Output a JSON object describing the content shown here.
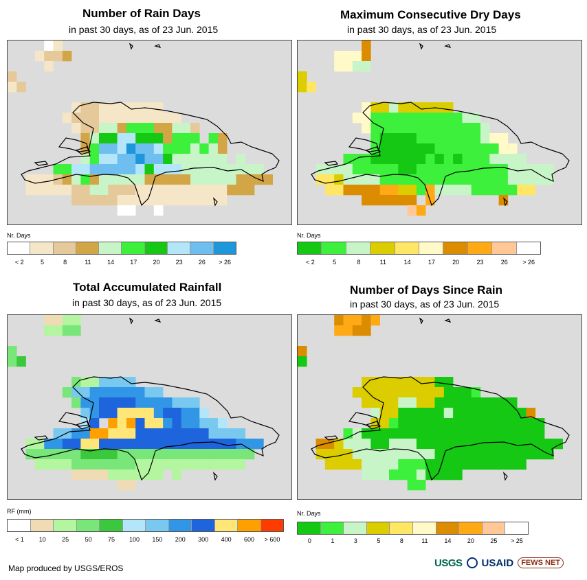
{
  "panels": [
    {
      "id": "rain-days",
      "title": "Number of Rain Days",
      "subtitle": "in past 30 days, as of 23 Jun. 2015",
      "legend_title": "Nr. Days",
      "legend_colors": [
        "#ffffff",
        "#f5e6c8",
        "#e6c99a",
        "#d2a646",
        "#c8f5c8",
        "#3cf03c",
        "#14c814",
        "#b4e6fa",
        "#6ebef0",
        "#1e96dc"
      ],
      "legend_labels": [
        "< 2",
        "5",
        "8",
        "11",
        "14",
        "17",
        "20",
        "23",
        "26",
        "> 26"
      ],
      "grid": [
        "....01.........................",
        "...1223........................",
        "....1..........................",
        "2..............................",
        "12.............................",
        "...............................",
        ".......1221111111..............",
        "......1222111111111............",
        ".......12244355533442..........",
        "........3466776663555.53.......",
        "........3588798875554543.......",
        "........4577889886444444.4.....",
        ".....55778888876777444444444...",
        "..111234534444433333444443333..",
        "..1111122442221111111111333....",
        ".......22222111111111111.......",
        "............00..0..............",
        "................................"
      ]
    },
    {
      "id": "dry-days",
      "title": "Maximum Consecutive Dry Days",
      "subtitle": "in past 30 days, as of 23 Jun. 2015",
      "legend_title": "Nr. Days",
      "legend_colors": [
        "#14c814",
        "#3cf03c",
        "#c8f5c8",
        "#dccd00",
        "#ffe664",
        "#fffac8",
        "#dc8c00",
        "#ffaa14",
        "#ffc896",
        "#ffffff"
      ],
      "legend_labels": [
        "< 2",
        "5",
        "8",
        "11",
        "14",
        "17",
        "20",
        "23",
        "26",
        "> 26"
      ],
      "grid": [
        ".......6.......................",
        "....5556.......................",
        "....5522.......................",
        "3..............................",
        "34.............................",
        "...............................",
        ".......5332333333..............",
        "......55111111111122...........",
        ".......51111111111112..........",
        "........100001111111255........",
        "........1000000111111155.......",
        ".....11100000010101112222......",
        "..22221111100111111111122222...",
        "..44322221111111111111122222...",
        "...44666677331722221111144.....",
        ".......666666.7.......6........",
        "............87.................",
        "..............................."
      ]
    },
    {
      "id": "rainfall",
      "title": "Total Accumulated Rainfall",
      "subtitle": "in past 30 days, as of 23 Jun. 2015",
      "legend_title": "RF (mm)",
      "legend_colors": [
        "#ffffff",
        "#f0dcb4",
        "#b4f5a0",
        "#78e678",
        "#3cc83c",
        "#b4e6fa",
        "#78c8f0",
        "#3296e6",
        "#1e64dc",
        "#ffe678",
        "#ffa000",
        "#ff3c00"
      ],
      "legend_labels": [
        "< 1",
        "10",
        "25",
        "50",
        "75",
        "100",
        "150",
        "200",
        "300",
        "400",
        "600",
        "> 600"
      ],
      "grid": [
        "....1122.......................",
        "....2233.......................",
        "...............................",
        "3..............................",
        "34.............................",
        "...............................",
        ".......3226666...............",
        "......36677777766..............",
        ".......37788887777666..........",
        "........67889999788775.........",
        "........58.A9A8997877665.......",
        ".....6677AA999888888886666.....",
        "..22778899888888888888888777...",
        "..3333334444333333333333333....",
        "...22223333333222222222222.....",
        ".......1111222222.2............",
        "............11.................",
        "..............................."
      ]
    },
    {
      "id": "days-since-rain",
      "title": "Number of Days Since Rain",
      "subtitle": "in past 30 days, as of 23 Jun. 2015",
      "legend_title": "Nr. Days",
      "legend_colors": [
        "#14c814",
        "#3cf03c",
        "#c8f5c8",
        "#dccd00",
        "#ffe664",
        "#fffac8",
        "#dc8c00",
        "#ffaa14",
        "#ffc896",
        "#ffffff"
      ],
      "legend_labels": [
        "0",
        "1",
        "3",
        "5",
        "8",
        "11",
        "14",
        "20",
        "25",
        "> 25"
      ],
      "grid": [
        "....67767.......................",
        "....7766........................",
        "...............................",
        "6..............................",
        "0..............................",
        "...............................",
        ".......3333333300..............",
        "......33333333330001...........",
        ".......33332233000000000.......",
        "........233000002000000006.....",
        "........3310000000000000000....",
        ".....1200000000000000000000....",
        "..663222002220000000000000000..",
        "..33332222222220000000000000...",
        "...3333222211100000000000......",
        ".......22211120000.............",
        "............11.................",
        "..............................."
      ]
    }
  ],
  "footer": {
    "credit": "Map produced by USGS/EROS",
    "logos": [
      "USGS",
      "USAID",
      "FEWS NET"
    ]
  }
}
